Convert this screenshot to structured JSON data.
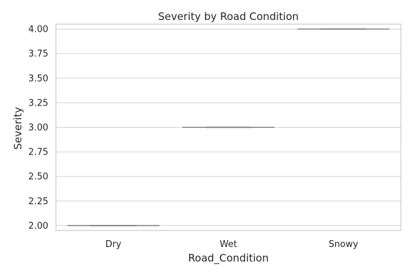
{
  "chart_data": {
    "type": "box",
    "title": "Severity by Road Condition",
    "xlabel": "Road_Condition",
    "ylabel": "Severity",
    "categories": [
      "Dry",
      "Wet",
      "Snowy"
    ],
    "values": [
      2.0,
      3.0,
      4.0
    ],
    "ylim": [
      1.95,
      4.05
    ],
    "yticks": [
      2.0,
      2.25,
      2.5,
      2.75,
      3.0,
      3.25,
      3.5,
      3.75,
      4.0
    ],
    "ytick_labels": [
      "2.00",
      "2.25",
      "2.50",
      "2.75",
      "3.00",
      "3.25",
      "3.50",
      "3.75",
      "4.00"
    ],
    "grid": "horizontal",
    "legend": "none"
  }
}
